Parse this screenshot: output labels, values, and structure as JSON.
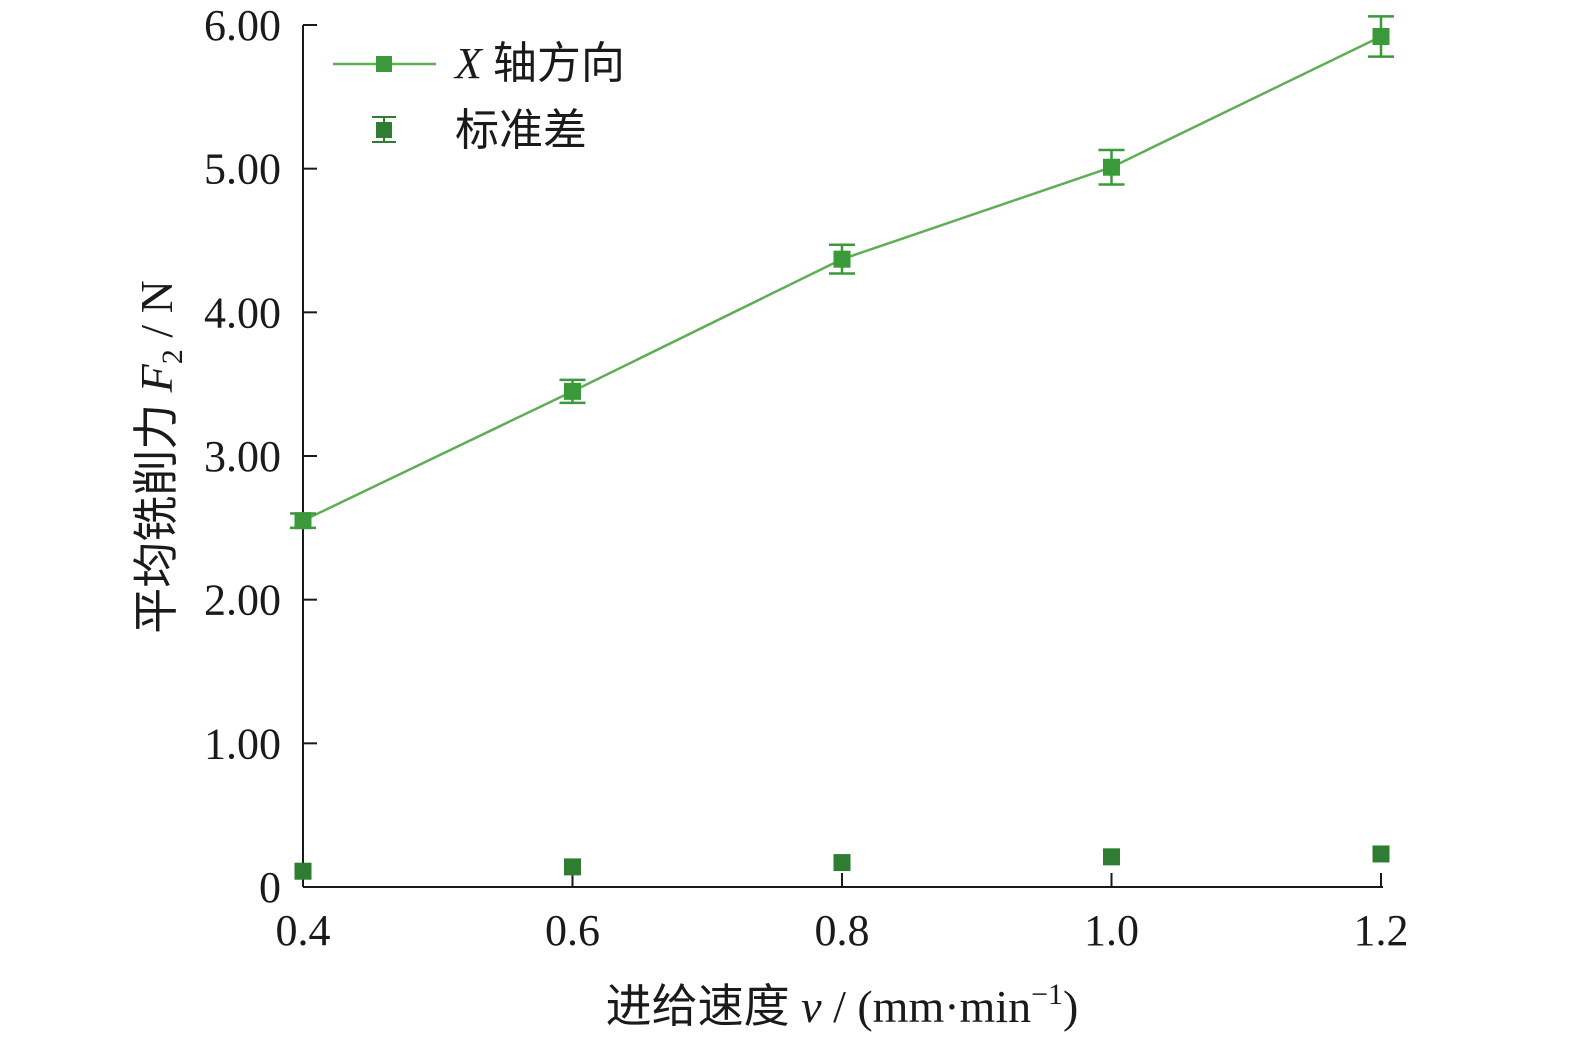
{
  "chart_data": {
    "type": "line",
    "x": [
      0.4,
      0.6,
      0.8,
      1.0,
      1.2
    ],
    "xticks": [
      "0.4",
      "0.6",
      "0.8",
      "1.0",
      "1.2"
    ],
    "xlim": [
      0.4,
      1.2
    ],
    "yticks": [
      "0",
      "1.00",
      "2.00",
      "3.00",
      "4.00",
      "5.00",
      "6.00"
    ],
    "ylim": [
      0,
      6
    ],
    "xlabel": {
      "prefix": "进给速度 ",
      "var": "v",
      "unit_before": " / (mm·min",
      "sup": "−1",
      "unit_after": ")"
    },
    "ylabel": {
      "prefix": "平均铣削力 ",
      "var": "F",
      "sub": "2",
      "unit": " / N"
    },
    "series": [
      {
        "name_var": "X",
        "name_text": " 轴方向",
        "style": "line+square+errorbar",
        "values": [
          2.55,
          3.45,
          4.37,
          5.01,
          5.92
        ],
        "errors": [
          0.05,
          0.08,
          0.1,
          0.12,
          0.14
        ],
        "color": "#3a9a3a",
        "line_color": "#5fae55"
      },
      {
        "name_text": "标准差",
        "style": "square",
        "values": [
          0.11,
          0.14,
          0.17,
          0.21,
          0.23
        ],
        "color": "#2e7d32"
      }
    ],
    "legend_position": "top-left",
    "grid": false
  }
}
